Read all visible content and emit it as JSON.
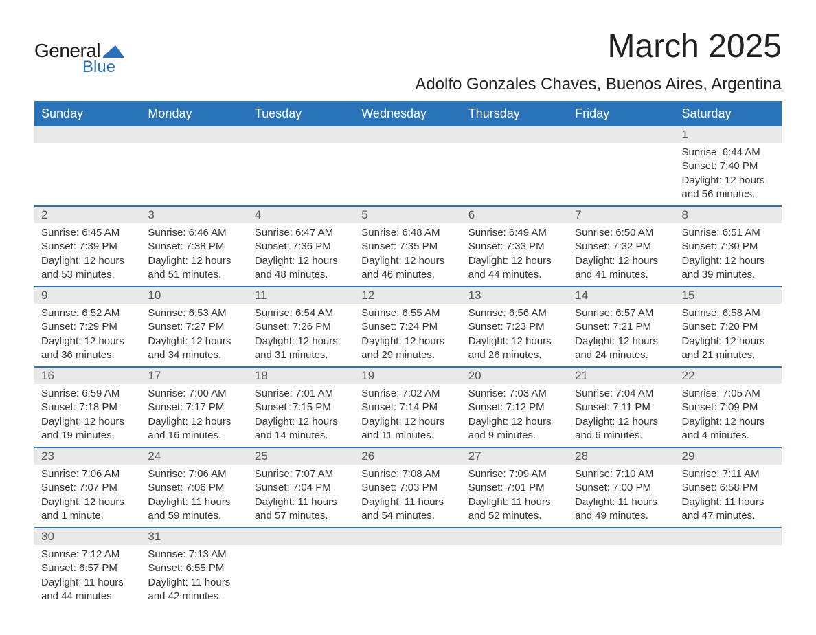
{
  "logo": {
    "text1": "General",
    "text2": "Blue",
    "icon_color": "#2a73b8"
  },
  "header": {
    "month_title": "March 2025",
    "location": "Adolfo Gonzales Chaves, Buenos Aires, Argentina"
  },
  "calendar": {
    "day_headers": [
      "Sunday",
      "Monday",
      "Tuesday",
      "Wednesday",
      "Thursday",
      "Friday",
      "Saturday"
    ],
    "header_bg": "#2a73b8",
    "header_fg": "#ffffff",
    "divider_color": "#2a73b8",
    "daynum_bg": "#e9e9e9",
    "weeks": [
      [
        null,
        null,
        null,
        null,
        null,
        null,
        {
          "day": "1",
          "sunrise": "Sunrise: 6:44 AM",
          "sunset": "Sunset: 7:40 PM",
          "dl1": "Daylight: 12 hours",
          "dl2": "and 56 minutes."
        }
      ],
      [
        {
          "day": "2",
          "sunrise": "Sunrise: 6:45 AM",
          "sunset": "Sunset: 7:39 PM",
          "dl1": "Daylight: 12 hours",
          "dl2": "and 53 minutes."
        },
        {
          "day": "3",
          "sunrise": "Sunrise: 6:46 AM",
          "sunset": "Sunset: 7:38 PM",
          "dl1": "Daylight: 12 hours",
          "dl2": "and 51 minutes."
        },
        {
          "day": "4",
          "sunrise": "Sunrise: 6:47 AM",
          "sunset": "Sunset: 7:36 PM",
          "dl1": "Daylight: 12 hours",
          "dl2": "and 48 minutes."
        },
        {
          "day": "5",
          "sunrise": "Sunrise: 6:48 AM",
          "sunset": "Sunset: 7:35 PM",
          "dl1": "Daylight: 12 hours",
          "dl2": "and 46 minutes."
        },
        {
          "day": "6",
          "sunrise": "Sunrise: 6:49 AM",
          "sunset": "Sunset: 7:33 PM",
          "dl1": "Daylight: 12 hours",
          "dl2": "and 44 minutes."
        },
        {
          "day": "7",
          "sunrise": "Sunrise: 6:50 AM",
          "sunset": "Sunset: 7:32 PM",
          "dl1": "Daylight: 12 hours",
          "dl2": "and 41 minutes."
        },
        {
          "day": "8",
          "sunrise": "Sunrise: 6:51 AM",
          "sunset": "Sunset: 7:30 PM",
          "dl1": "Daylight: 12 hours",
          "dl2": "and 39 minutes."
        }
      ],
      [
        {
          "day": "9",
          "sunrise": "Sunrise: 6:52 AM",
          "sunset": "Sunset: 7:29 PM",
          "dl1": "Daylight: 12 hours",
          "dl2": "and 36 minutes."
        },
        {
          "day": "10",
          "sunrise": "Sunrise: 6:53 AM",
          "sunset": "Sunset: 7:27 PM",
          "dl1": "Daylight: 12 hours",
          "dl2": "and 34 minutes."
        },
        {
          "day": "11",
          "sunrise": "Sunrise: 6:54 AM",
          "sunset": "Sunset: 7:26 PM",
          "dl1": "Daylight: 12 hours",
          "dl2": "and 31 minutes."
        },
        {
          "day": "12",
          "sunrise": "Sunrise: 6:55 AM",
          "sunset": "Sunset: 7:24 PM",
          "dl1": "Daylight: 12 hours",
          "dl2": "and 29 minutes."
        },
        {
          "day": "13",
          "sunrise": "Sunrise: 6:56 AM",
          "sunset": "Sunset: 7:23 PM",
          "dl1": "Daylight: 12 hours",
          "dl2": "and 26 minutes."
        },
        {
          "day": "14",
          "sunrise": "Sunrise: 6:57 AM",
          "sunset": "Sunset: 7:21 PM",
          "dl1": "Daylight: 12 hours",
          "dl2": "and 24 minutes."
        },
        {
          "day": "15",
          "sunrise": "Sunrise: 6:58 AM",
          "sunset": "Sunset: 7:20 PM",
          "dl1": "Daylight: 12 hours",
          "dl2": "and 21 minutes."
        }
      ],
      [
        {
          "day": "16",
          "sunrise": "Sunrise: 6:59 AM",
          "sunset": "Sunset: 7:18 PM",
          "dl1": "Daylight: 12 hours",
          "dl2": "and 19 minutes."
        },
        {
          "day": "17",
          "sunrise": "Sunrise: 7:00 AM",
          "sunset": "Sunset: 7:17 PM",
          "dl1": "Daylight: 12 hours",
          "dl2": "and 16 minutes."
        },
        {
          "day": "18",
          "sunrise": "Sunrise: 7:01 AM",
          "sunset": "Sunset: 7:15 PM",
          "dl1": "Daylight: 12 hours",
          "dl2": "and 14 minutes."
        },
        {
          "day": "19",
          "sunrise": "Sunrise: 7:02 AM",
          "sunset": "Sunset: 7:14 PM",
          "dl1": "Daylight: 12 hours",
          "dl2": "and 11 minutes."
        },
        {
          "day": "20",
          "sunrise": "Sunrise: 7:03 AM",
          "sunset": "Sunset: 7:12 PM",
          "dl1": "Daylight: 12 hours",
          "dl2": "and 9 minutes."
        },
        {
          "day": "21",
          "sunrise": "Sunrise: 7:04 AM",
          "sunset": "Sunset: 7:11 PM",
          "dl1": "Daylight: 12 hours",
          "dl2": "and 6 minutes."
        },
        {
          "day": "22",
          "sunrise": "Sunrise: 7:05 AM",
          "sunset": "Sunset: 7:09 PM",
          "dl1": "Daylight: 12 hours",
          "dl2": "and 4 minutes."
        }
      ],
      [
        {
          "day": "23",
          "sunrise": "Sunrise: 7:06 AM",
          "sunset": "Sunset: 7:07 PM",
          "dl1": "Daylight: 12 hours",
          "dl2": "and 1 minute."
        },
        {
          "day": "24",
          "sunrise": "Sunrise: 7:06 AM",
          "sunset": "Sunset: 7:06 PM",
          "dl1": "Daylight: 11 hours",
          "dl2": "and 59 minutes."
        },
        {
          "day": "25",
          "sunrise": "Sunrise: 7:07 AM",
          "sunset": "Sunset: 7:04 PM",
          "dl1": "Daylight: 11 hours",
          "dl2": "and 57 minutes."
        },
        {
          "day": "26",
          "sunrise": "Sunrise: 7:08 AM",
          "sunset": "Sunset: 7:03 PM",
          "dl1": "Daylight: 11 hours",
          "dl2": "and 54 minutes."
        },
        {
          "day": "27",
          "sunrise": "Sunrise: 7:09 AM",
          "sunset": "Sunset: 7:01 PM",
          "dl1": "Daylight: 11 hours",
          "dl2": "and 52 minutes."
        },
        {
          "day": "28",
          "sunrise": "Sunrise: 7:10 AM",
          "sunset": "Sunset: 7:00 PM",
          "dl1": "Daylight: 11 hours",
          "dl2": "and 49 minutes."
        },
        {
          "day": "29",
          "sunrise": "Sunrise: 7:11 AM",
          "sunset": "Sunset: 6:58 PM",
          "dl1": "Daylight: 11 hours",
          "dl2": "and 47 minutes."
        }
      ],
      [
        {
          "day": "30",
          "sunrise": "Sunrise: 7:12 AM",
          "sunset": "Sunset: 6:57 PM",
          "dl1": "Daylight: 11 hours",
          "dl2": "and 44 minutes."
        },
        {
          "day": "31",
          "sunrise": "Sunrise: 7:13 AM",
          "sunset": "Sunset: 6:55 PM",
          "dl1": "Daylight: 11 hours",
          "dl2": "and 42 minutes."
        },
        null,
        null,
        null,
        null,
        null
      ]
    ]
  }
}
